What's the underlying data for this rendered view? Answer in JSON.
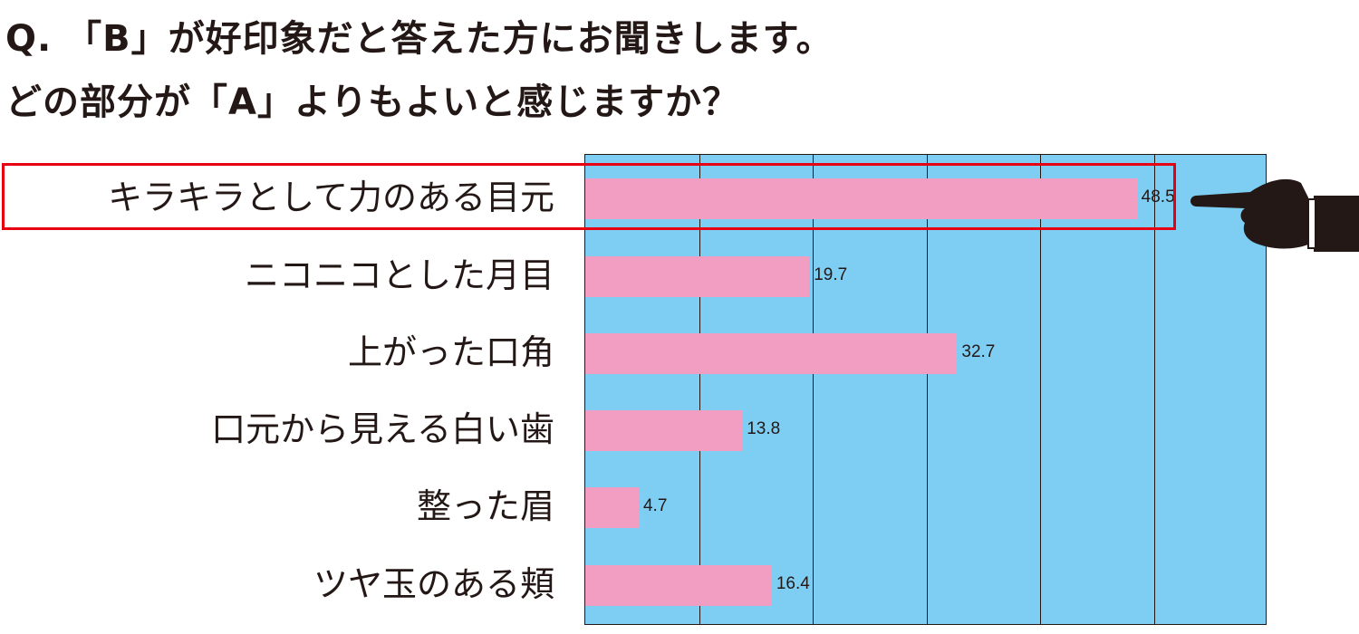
{
  "title": {
    "line1": "Q. 「B」が好印象だと答えた方にお聞きします。",
    "line2": "どの部分が「A」よりもよいと感じますか？"
  },
  "chart_data": {
    "type": "bar",
    "orientation": "horizontal",
    "categories": [
      "キラキラとして力のある目元",
      "ニコニコとした月目",
      "上がった口角",
      "口元から見える白い歯",
      "整った眉",
      "ツヤ玉のある頬"
    ],
    "values": [
      48.5,
      19.7,
      32.7,
      13.8,
      4.7,
      16.4
    ],
    "value_labels": [
      "48.5",
      "19.7",
      "32.7",
      "13.8",
      "4.7",
      "16.4"
    ],
    "xlim": [
      0,
      60
    ],
    "grid_step": 10,
    "grid": true,
    "highlighted_category": "キラキラとして力のある目元",
    "colors": {
      "bar": "#f19ec2",
      "plot_background": "#7ecef4",
      "highlight": "#e60012",
      "text": "#231815"
    }
  },
  "icons": {
    "pointer": "pointing-hand-icon"
  }
}
